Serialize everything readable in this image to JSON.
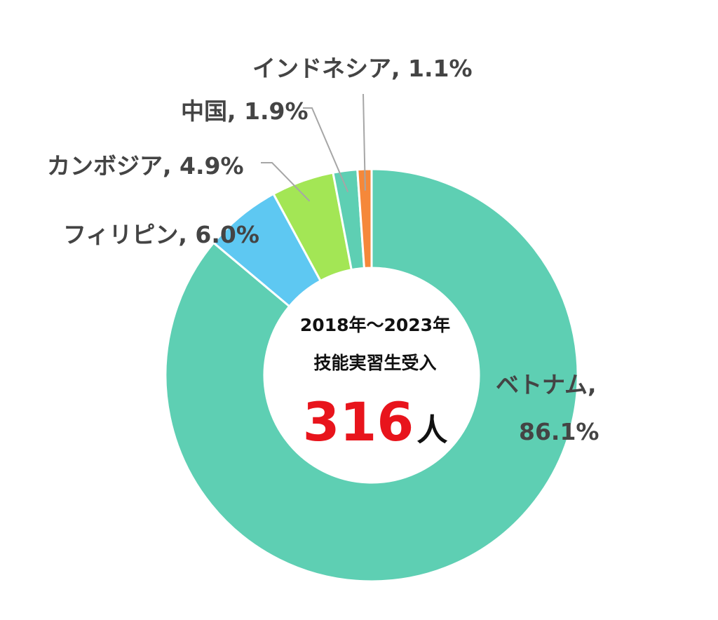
{
  "chart_data": {
    "type": "pie",
    "donut": true,
    "categories": [
      "ベトナム",
      "フィリピン",
      "カンボジア",
      "中国",
      "インドネシア"
    ],
    "values": [
      86.1,
      6.0,
      4.9,
      1.9,
      1.1
    ],
    "value_labels": [
      "86.1%",
      "6.0%",
      "4.9%",
      "1.9%",
      "1.1%"
    ],
    "colors": [
      "#5ecfb3",
      "#5ec8f2",
      "#a3e655",
      "#5ecfb3",
      "#f5883a"
    ],
    "legend": "none",
    "center": {
      "line1": "2018年～2023年",
      "line2": "技能実習生受入",
      "number": "316",
      "unit": "人",
      "number_color": "#e8141c",
      "unit_color": "#111111"
    }
  }
}
